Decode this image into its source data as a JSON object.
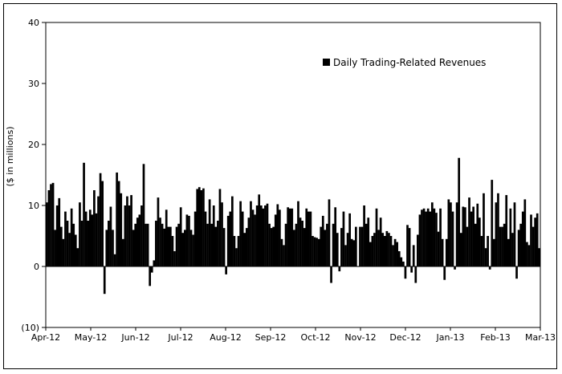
{
  "chart_data": {
    "type": "bar",
    "ylabel": "($ in millions)",
    "ylim": [
      -10,
      40
    ],
    "yticks": [
      -10,
      0,
      10,
      20,
      30,
      40
    ],
    "ytick_labels": [
      "(10)",
      "0",
      "10",
      "20",
      "30",
      "40"
    ],
    "xtick_labels": [
      "Apr-12",
      "May-12",
      "Jun-12",
      "Jul-12",
      "Aug-12",
      "Sep-12",
      "Oct-12",
      "Nov-12",
      "Dec-12",
      "Jan-13",
      "Feb-13",
      "Mar-13"
    ],
    "legend_position": "top-right",
    "grid": false,
    "colors": {
      "bar": "#000000",
      "axis": "#000000"
    },
    "series": [
      {
        "name": "Daily Trading-Related Revenues",
        "values": [
          10.5,
          12.5,
          13.5,
          13.7,
          6.0,
          10.0,
          11.2,
          6.5,
          4.5,
          9.0,
          7.5,
          5.5,
          9.5,
          7.0,
          5.2,
          3.0,
          10.5,
          7.5,
          17.0,
          9.0,
          7.5,
          9.3,
          8.5,
          12.5,
          8.7,
          11.5,
          15.3,
          14.0,
          -4.5,
          6.0,
          7.5,
          9.8,
          6.0,
          2.0,
          15.4,
          14.0,
          12.0,
          4.5,
          10.0,
          11.5,
          10.0,
          11.7,
          6.0,
          7.0,
          8.0,
          8.5,
          10.0,
          16.8,
          7.0,
          7.0,
          -3.2,
          -1.0,
          1.0,
          7.5,
          11.3,
          8.0,
          7.0,
          6.2,
          9.3,
          6.5,
          6.5,
          5.0,
          2.5,
          6.5,
          7.0,
          9.7,
          5.5,
          6.0,
          8.5,
          8.3,
          6.0,
          5.2,
          9.0,
          12.7,
          13.0,
          12.5,
          12.8,
          9.0,
          7.0,
          11.0,
          7.0,
          10.0,
          6.5,
          7.5,
          12.7,
          10.5,
          6.3,
          -1.3,
          8.3,
          9.0,
          11.5,
          5.0,
          3.0,
          5.0,
          10.7,
          9.0,
          5.5,
          6.3,
          8.0,
          10.7,
          9.3,
          8.5,
          10.0,
          11.8,
          10.0,
          9.5,
          10.0,
          10.3,
          7.0,
          6.3,
          6.5,
          8.5,
          10.2,
          9.3,
          4.5,
          3.5,
          7.0,
          9.7,
          9.5,
          9.5,
          6.0,
          7.0,
          10.7,
          8.0,
          7.5,
          6.3,
          9.5,
          9.0,
          9.0,
          5.0,
          4.8,
          4.7,
          4.5,
          6.5,
          8.3,
          6.0,
          7.0,
          11.0,
          -2.7,
          7.0,
          9.7,
          5.5,
          -0.8,
          6.3,
          9.0,
          3.5,
          5.5,
          8.7,
          4.5,
          4.3,
          6.5,
          0.0,
          6.5,
          6.5,
          10.0,
          7.0,
          8.0,
          4.0,
          5.0,
          5.5,
          9.5,
          6.0,
          8.0,
          5.5,
          5.0,
          5.8,
          5.5,
          5.0,
          3.5,
          4.5,
          4.0,
          2.5,
          1.5,
          0.8,
          -2.0,
          6.8,
          6.3,
          -1.0,
          3.5,
          -2.7,
          5.2,
          8.5,
          9.3,
          9.5,
          9.0,
          9.5,
          9.0,
          10.5,
          9.5,
          8.8,
          5.7,
          9.5,
          4.5,
          -2.2,
          4.5,
          11.0,
          10.5,
          9.0,
          -0.5,
          10.5,
          17.8,
          5.5,
          9.8,
          9.7,
          6.5,
          11.3,
          9.0,
          9.8,
          7.0,
          10.3,
          8.0,
          5.0,
          12.0,
          3.0,
          5.0,
          -0.5,
          14.2,
          4.5,
          10.5,
          12.0,
          6.5,
          6.5,
          7.0,
          11.7,
          4.5,
          9.5,
          5.5,
          10.5,
          -2.0,
          6.0,
          7.0,
          9.0,
          11.0,
          4.0,
          3.5,
          8.5,
          6.5,
          8.0,
          8.7,
          3.0
        ]
      }
    ]
  }
}
